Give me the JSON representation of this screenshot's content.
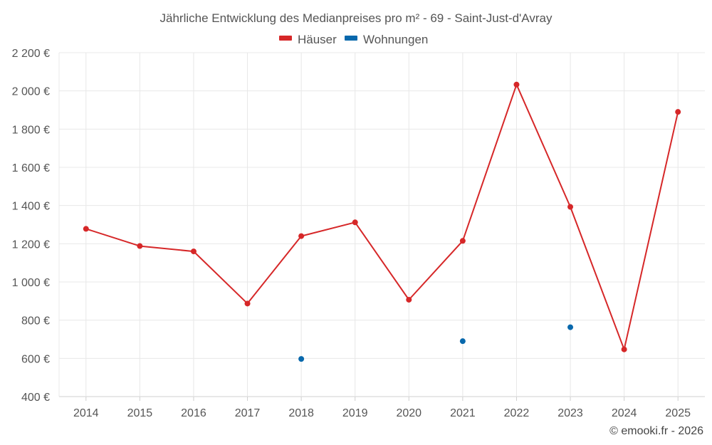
{
  "chart_data": {
    "type": "line",
    "title": "Jährliche Entwicklung des Medianpreises pro m² - 69 - Saint-Just-d'Avray",
    "categories": [
      "2014",
      "2015",
      "2016",
      "2017",
      "2018",
      "2019",
      "2020",
      "2021",
      "2022",
      "2023",
      "2024",
      "2025"
    ],
    "ylim": [
      400,
      2200
    ],
    "yticks": [
      400,
      600,
      800,
      1000,
      1200,
      1400,
      1600,
      1800,
      2000,
      2200
    ],
    "ytick_labels": [
      "400 €",
      "600 €",
      "800 €",
      "1 000 €",
      "1 200 €",
      "1 400 €",
      "1 600 €",
      "1 800 €",
      "2 000 €",
      "2 200 €"
    ],
    "grid": true,
    "legend_position": "top-center",
    "series": [
      {
        "name": "Häuser",
        "color": "#d62728",
        "style": "line",
        "values": [
          1278,
          1188,
          1160,
          887,
          1240,
          1312,
          907,
          1215,
          2033,
          1393,
          647,
          1890
        ]
      },
      {
        "name": "Wohnungen",
        "color": "#0868ac",
        "style": "points",
        "values": [
          null,
          null,
          null,
          null,
          597,
          null,
          null,
          690,
          null,
          763,
          null,
          null
        ]
      }
    ]
  },
  "credit": "© emooki.fr - 2026"
}
